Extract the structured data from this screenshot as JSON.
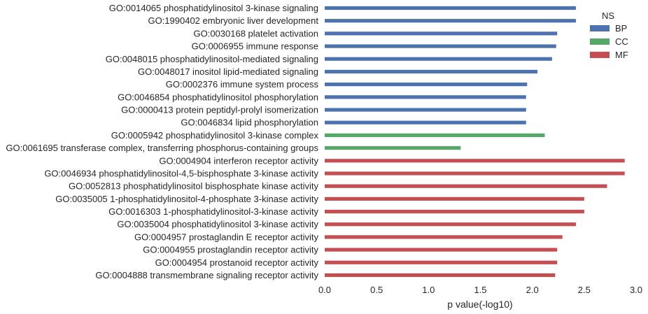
{
  "chart_data": {
    "type": "bar",
    "orientation": "horizontal",
    "xlabel": "p value(-log10)",
    "ylabel": "",
    "xlim": [
      0.0,
      3.0
    ],
    "xticks": [
      "0.0",
      "0.5",
      "1.0",
      "1.5",
      "2.0",
      "2.5",
      "3.0"
    ],
    "grid": false,
    "legend": {
      "title": "NS",
      "placement": "top-right",
      "entries": [
        {
          "name": "BP",
          "color": "#4c72b0"
        },
        {
          "name": "CC",
          "color": "#55a868"
        },
        {
          "name": "MF",
          "color": "#c44e52"
        }
      ]
    },
    "categories": [
      "GO:0014065 phosphatidylinositol 3-kinase signaling",
      "GO:1990402 embryonic liver development",
      "GO:0030168 platelet activation",
      "GO:0006955 immune response",
      "GO:0048015 phosphatidylinositol-mediated signaling",
      "GO:0048017 inositol lipid-mediated signaling",
      "GO:0002376 immune system process",
      "GO:0046854 phosphatidylinositol phosphorylation",
      "GO:0000413 protein peptidyl-prolyl isomerization",
      "GO:0046834 lipid phosphorylation",
      "GO:0005942 phosphatidylinositol 3-kinase complex",
      "GO:0061695 transferase complex, transferring phosphorus-containing groups",
      "GO:0004904 interferon receptor activity",
      "GO:0046934 phosphatidylinositol-4,5-bisphosphate 3-kinase activity",
      "GO:0052813 phosphatidylinositol bisphosphate kinase activity",
      "GO:0035005 1-phosphatidylinositol-4-phosphate 3-kinase activity",
      "GO:0016303 1-phosphatidylinositol-3-kinase activity",
      "GO:0035004 phosphatidylinositol 3-kinase activity",
      "GO:0004957 prostaglandin E receptor activity",
      "GO:0004955 prostaglandin receptor activity",
      "GO:0004954 prostanoid receptor activity",
      "GO:0004888 transmembrane signaling receptor activity"
    ],
    "series": [
      {
        "name": "BP",
        "color": "#4c72b0",
        "values": [
          2.42,
          2.42,
          2.24,
          2.23,
          2.19,
          2.05,
          1.95,
          1.94,
          1.94,
          1.94,
          null,
          null,
          null,
          null,
          null,
          null,
          null,
          null,
          null,
          null,
          null,
          null
        ]
      },
      {
        "name": "CC",
        "color": "#55a868",
        "values": [
          null,
          null,
          null,
          null,
          null,
          null,
          null,
          null,
          null,
          null,
          2.12,
          1.31,
          null,
          null,
          null,
          null,
          null,
          null,
          null,
          null,
          null,
          null
        ]
      },
      {
        "name": "MF",
        "color": "#c44e52",
        "values": [
          null,
          null,
          null,
          null,
          null,
          null,
          null,
          null,
          null,
          null,
          null,
          null,
          2.89,
          2.89,
          2.72,
          2.5,
          2.5,
          2.42,
          2.29,
          2.24,
          2.24,
          2.22
        ]
      }
    ]
  }
}
